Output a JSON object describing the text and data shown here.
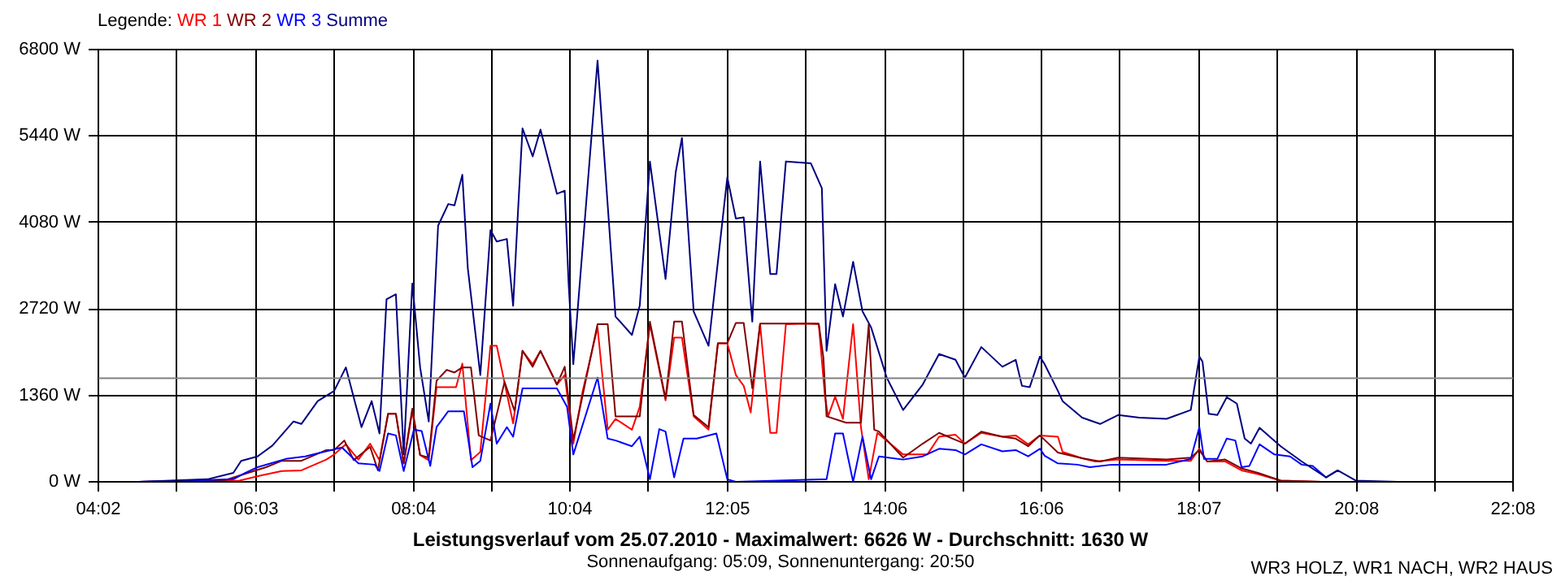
{
  "chart_data": {
    "type": "line",
    "title": "Leistungsverlauf vom 25.07.2010 - Maximalwert: 6626 W - Durchschnitt: 1630 W",
    "subtitle": "Sonnenaufgang: 05:09, Sonnenuntergang: 20:50",
    "annotations": [
      "WR3 HOLZ, WR1 NACH, WR2 HAUS"
    ],
    "legend_title": "Legende:",
    "legend": "top left",
    "grid": true,
    "line_style": "solid",
    "marker": "none",
    "xlim": [
      4.0333,
      22.1333
    ],
    "xticks": [
      {
        "value": 4.0333,
        "label": "04:02"
      },
      {
        "value": 5.0389,
        "label": null
      },
      {
        "value": 6.05,
        "label": "06:03"
      },
      {
        "value": 7.05,
        "label": null
      },
      {
        "value": 8.0667,
        "label": "08:04"
      },
      {
        "value": 9.0611,
        "label": null
      },
      {
        "value": 10.0667,
        "label": "10:04"
      },
      {
        "value": 11.0722,
        "label": null
      },
      {
        "value": 12.0833,
        "label": "12:05"
      },
      {
        "value": 13.0833,
        "label": null
      },
      {
        "value": 14.1,
        "label": "14:06"
      },
      {
        "value": 15.0944,
        "label": null
      },
      {
        "value": 16.1,
        "label": "16:06"
      },
      {
        "value": 17.1056,
        "label": null
      },
      {
        "value": 18.1167,
        "label": "18:07"
      },
      {
        "value": 19.1167,
        "label": null
      },
      {
        "value": 20.1333,
        "label": "20:08"
      },
      {
        "value": 21.1278,
        "label": null
      },
      {
        "value": 22.1333,
        "label": "22:08"
      }
    ],
    "ylim": [
      0,
      6800
    ],
    "yticks": [
      {
        "value": 0,
        "label": "0 W"
      },
      {
        "value": 1360,
        "label": "1360 W"
      },
      {
        "value": 2720,
        "label": "2720 W"
      },
      {
        "value": 4080,
        "label": "4080 W"
      },
      {
        "value": 5440,
        "label": "5440 W"
      },
      {
        "value": 6800,
        "label": "6800 W"
      }
    ],
    "ref_lines": [
      {
        "axis": "y",
        "value": 1630,
        "color": "#808080"
      }
    ],
    "series": [
      {
        "name": "WR 1",
        "color": "#ff0000",
        "x": [
          4.55,
          5.84,
          6.11,
          6.38,
          6.63,
          6.95,
          7.05,
          7.2,
          7.36,
          7.51,
          7.63,
          7.74,
          7.84,
          7.94,
          8.05,
          8.15,
          8.26,
          8.36,
          8.61,
          8.69,
          8.8,
          8.92,
          9.05,
          9.13,
          9.34,
          9.46,
          9.59,
          9.69,
          9.9,
          10.0,
          10.11,
          10.23,
          10.42,
          10.55,
          10.65,
          10.86,
          10.96,
          11.09,
          11.29,
          11.4,
          11.5,
          11.65,
          11.84,
          11.96,
          12.08,
          12.19,
          12.29,
          12.38,
          12.5,
          12.63,
          12.71,
          12.83,
          13.08,
          13.25,
          13.33,
          13.37,
          13.46,
          13.56,
          13.69,
          13.79,
          13.89,
          14.0,
          14.33,
          14.64,
          14.79,
          15.0,
          15.12,
          15.33,
          15.6,
          15.77,
          15.93,
          16.08,
          16.31,
          16.37,
          16.62,
          16.79,
          17.08,
          17.7,
          18.01,
          18.12,
          18.22,
          18.45,
          18.66,
          18.87,
          19.16,
          19.68
        ],
        "values": [
          0,
          20,
          100,
          170,
          180,
          350,
          430,
          590,
          350,
          600,
          340,
          1070,
          1070,
          290,
          1110,
          420,
          340,
          1490,
          1490,
          1860,
          340,
          470,
          2140,
          2140,
          920,
          2060,
          1850,
          2060,
          1530,
          1680,
          600,
          1430,
          2430,
          820,
          990,
          820,
          1180,
          2480,
          1280,
          2270,
          2270,
          1030,
          820,
          2180,
          2180,
          1680,
          1510,
          1090,
          2480,
          770,
          770,
          2480,
          2490,
          2480,
          1340,
          1030,
          1340,
          990,
          2480,
          860,
          40,
          770,
          430,
          430,
          710,
          740,
          600,
          770,
          710,
          730,
          590,
          730,
          710,
          470,
          370,
          320,
          350,
          330,
          330,
          520,
          320,
          320,
          180,
          120,
          20,
          0
        ]
      },
      {
        "name": "WR 2",
        "color": "#800000",
        "x": [
          4.55,
          5.64,
          5.84,
          6.18,
          6.38,
          6.63,
          6.95,
          7.05,
          7.18,
          7.3,
          7.51,
          7.61,
          7.74,
          7.84,
          7.94,
          8.05,
          8.15,
          8.26,
          8.36,
          8.49,
          8.59,
          8.69,
          8.8,
          8.9,
          9.05,
          9.23,
          9.36,
          9.46,
          9.59,
          9.69,
          9.9,
          10.0,
          10.11,
          10.42,
          10.55,
          10.65,
          10.96,
          11.09,
          11.29,
          11.4,
          11.5,
          11.65,
          11.84,
          11.96,
          12.08,
          12.19,
          12.29,
          12.4,
          12.5,
          13.25,
          13.31,
          13.35,
          13.6,
          13.79,
          13.89,
          13.96,
          14.02,
          14.33,
          14.58,
          14.79,
          15.0,
          15.12,
          15.33,
          15.6,
          15.77,
          15.93,
          16.08,
          16.31,
          16.62,
          16.85,
          17.08,
          17.7,
          18.01,
          18.12,
          18.22,
          18.45,
          18.66,
          18.87,
          19.16,
          19.68
        ],
        "values": [
          0,
          20,
          100,
          230,
          330,
          330,
          500,
          500,
          650,
          340,
          550,
          180,
          1070,
          1070,
          290,
          1150,
          420,
          380,
          1590,
          1760,
          1720,
          1800,
          1800,
          730,
          650,
          1570,
          1110,
          2060,
          1810,
          2060,
          1530,
          1810,
          660,
          2480,
          2480,
          1030,
          1030,
          2520,
          1310,
          2520,
          2520,
          1050,
          860,
          2180,
          2180,
          2500,
          2500,
          1470,
          2490,
          2490,
          1950,
          1030,
          930,
          930,
          2480,
          820,
          790,
          380,
          600,
          770,
          660,
          600,
          790,
          710,
          680,
          560,
          730,
          460,
          370,
          320,
          380,
          350,
          380,
          500,
          320,
          350,
          210,
          140,
          20,
          0
        ]
      },
      {
        "name": "WR 3",
        "color": "#0000ff",
        "x": [
          4.55,
          5.76,
          5.91,
          6.07,
          6.43,
          6.68,
          6.88,
          7.15,
          7.36,
          7.57,
          7.63,
          7.74,
          7.84,
          7.94,
          8.07,
          8.17,
          8.28,
          8.36,
          8.51,
          8.71,
          8.82,
          8.92,
          9.05,
          9.13,
          9.26,
          9.34,
          9.46,
          9.9,
          10.03,
          10.11,
          10.42,
          10.55,
          10.65,
          10.86,
          10.96,
          11.09,
          11.21,
          11.29,
          11.4,
          11.52,
          11.69,
          11.94,
          12.08,
          12.19,
          13.35,
          13.46,
          13.56,
          13.69,
          13.81,
          13.92,
          14.02,
          14.33,
          14.58,
          14.79,
          15.0,
          15.12,
          15.33,
          15.6,
          15.77,
          15.93,
          16.08,
          16.14,
          16.31,
          16.56,
          16.72,
          17.0,
          17.7,
          18.01,
          18.12,
          18.18,
          18.35,
          18.47,
          18.58,
          18.66,
          18.76,
          18.89,
          19.08,
          19.28,
          19.43,
          19.57,
          19.74,
          19.89
        ],
        "values": [
          0,
          40,
          140,
          230,
          360,
          400,
          460,
          540,
          290,
          270,
          170,
          760,
          730,
          170,
          820,
          800,
          250,
          860,
          1110,
          1110,
          230,
          330,
          1230,
          600,
          860,
          710,
          1470,
          1470,
          1180,
          430,
          1640,
          680,
          650,
          560,
          710,
          40,
          830,
          790,
          70,
          680,
          680,
          760,
          40,
          0,
          40,
          760,
          760,
          0,
          710,
          40,
          400,
          350,
          400,
          520,
          500,
          430,
          590,
          480,
          500,
          400,
          520,
          410,
          290,
          270,
          230,
          270,
          270,
          360,
          860,
          360,
          360,
          680,
          650,
          230,
          250,
          590,
          430,
          400,
          270,
          250,
          70,
          180
        ]
      },
      {
        "name": "Summe",
        "color": "#000080",
        "x": [
          4.55,
          5.43,
          5.76,
          5.86,
          6.07,
          6.26,
          6.53,
          6.63,
          6.84,
          7.05,
          7.2,
          7.4,
          7.53,
          7.63,
          7.72,
          7.84,
          7.94,
          8.05,
          8.15,
          8.26,
          8.38,
          8.51,
          8.59,
          8.69,
          8.76,
          8.92,
          9.05,
          9.13,
          9.26,
          9.34,
          9.4,
          9.46,
          9.59,
          9.69,
          9.9,
          10.0,
          10.05,
          10.11,
          10.42,
          10.65,
          10.86,
          10.96,
          11.09,
          11.29,
          11.42,
          11.5,
          11.65,
          11.84,
          12.08,
          12.19,
          12.29,
          12.4,
          12.5,
          12.63,
          12.71,
          12.83,
          13.15,
          13.29,
          13.35,
          13.46,
          13.56,
          13.69,
          13.81,
          13.92,
          14.12,
          14.33,
          14.58,
          14.79,
          15.0,
          15.12,
          15.33,
          15.6,
          15.77,
          15.85,
          15.95,
          16.08,
          16.14,
          16.31,
          16.37,
          16.62,
          16.85,
          17.08,
          17.35,
          17.7,
          18.01,
          18.12,
          18.16,
          18.24,
          18.35,
          18.47,
          18.6,
          18.7,
          18.78,
          18.89,
          19.16,
          19.43,
          19.74,
          19.89,
          20.12,
          20.66
        ],
        "values": [
          0,
          40,
          140,
          330,
          400,
          570,
          950,
          910,
          1270,
          1430,
          1800,
          860,
          1270,
          760,
          2870,
          2950,
          430,
          3120,
          1800,
          950,
          4030,
          4370,
          4350,
          4830,
          3360,
          1680,
          3960,
          3780,
          3820,
          2770,
          4200,
          5560,
          5120,
          5540,
          4530,
          4580,
          3110,
          1850,
          6626,
          2600,
          2310,
          2770,
          5040,
          3190,
          4870,
          5410,
          2680,
          2140,
          4790,
          4140,
          4160,
          2520,
          5040,
          3270,
          3270,
          5040,
          5010,
          4620,
          2060,
          3110,
          2600,
          3460,
          2680,
          2430,
          1640,
          1130,
          1530,
          2010,
          1920,
          1640,
          2120,
          1810,
          1920,
          1510,
          1490,
          1970,
          1850,
          1430,
          1270,
          1010,
          910,
          1050,
          1010,
          990,
          1130,
          1970,
          1890,
          1070,
          1050,
          1330,
          1230,
          680,
          600,
          850,
          560,
          320,
          70,
          180,
          20,
          0
        ]
      }
    ]
  }
}
